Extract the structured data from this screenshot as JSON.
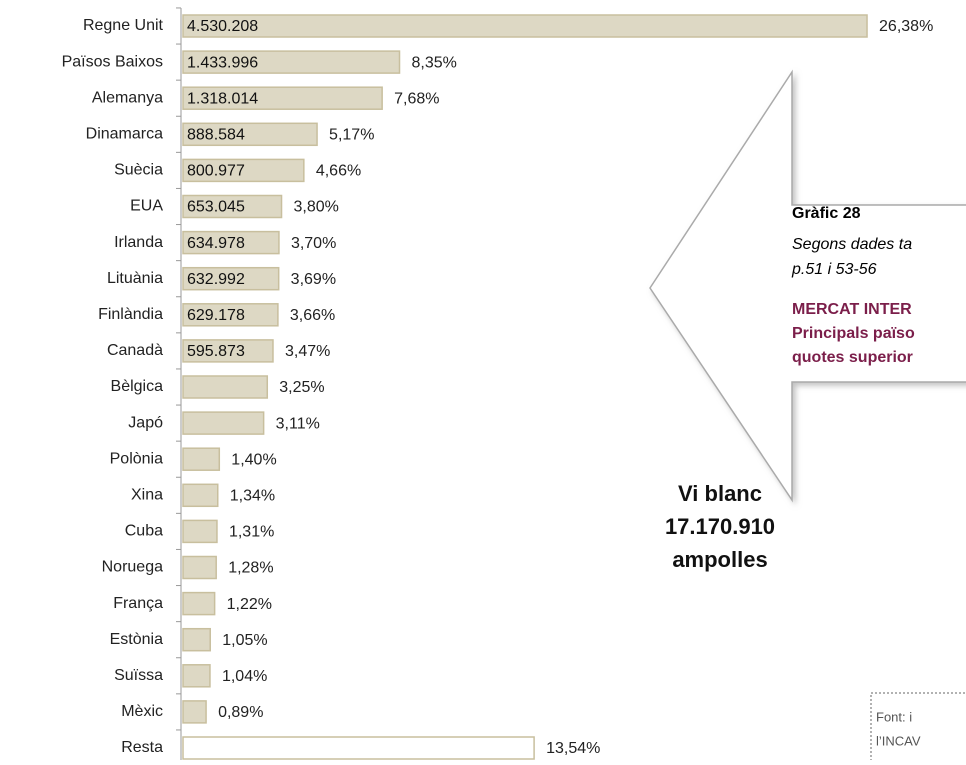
{
  "chart_data": {
    "type": "bar",
    "categories": [
      "Regne Unit",
      "Països Baixos",
      "Alemanya",
      "Dinamarca",
      "Suècia",
      "EUA",
      "Irlanda",
      "Lituània",
      "Finlàndia",
      "Canadà",
      "Bèlgica",
      "Japó",
      "Polònia",
      "Xina",
      "Cuba",
      "Noruega",
      "França",
      "Estònia",
      "Suïssa",
      "Mèxic",
      "Resta"
    ],
    "values": [
      26.38,
      8.35,
      7.68,
      5.17,
      4.66,
      3.8,
      3.7,
      3.69,
      3.66,
      3.47,
      3.25,
      3.11,
      1.4,
      1.34,
      1.31,
      1.28,
      1.22,
      1.05,
      1.04,
      0.89,
      13.54
    ],
    "value_labels": [
      "26,38%",
      "8,35%",
      "7,68%",
      "5,17%",
      "4,66%",
      "3,80%",
      "3,70%",
      "3,69%",
      "3,66%",
      "3,47%",
      "3,25%",
      "3,11%",
      "1,40%",
      "1,34%",
      "1,31%",
      "1,28%",
      "1,22%",
      "1,05%",
      "1,04%",
      "0,89%",
      "13,54%"
    ],
    "bottles": [
      4530208,
      1433996,
      1318014,
      888584,
      800977,
      653045,
      634978,
      632992,
      629178,
      595873,
      null,
      null,
      null,
      null,
      null,
      null,
      null,
      null,
      null,
      null,
      null
    ],
    "bottle_labels": [
      "4.530.208",
      "1.433.996",
      "1.318.014",
      "888.584",
      "800.977",
      "653.045",
      "634.978",
      "632.992",
      "629.178",
      "595.873",
      null,
      null,
      null,
      null,
      null,
      null,
      null,
      null,
      null,
      null,
      null
    ],
    "colors": [
      "#ddd8c4",
      "#ddd8c4",
      "#ddd8c4",
      "#ddd8c4",
      "#ddd8c4",
      "#ddd8c4",
      "#ddd8c4",
      "#ddd8c4",
      "#ddd8c4",
      "#ddd8c4",
      "#ddd8c4",
      "#ddd8c4",
      "#ddd8c4",
      "#ddd8c4",
      "#ddd8c4",
      "#ddd8c4",
      "#ddd8c4",
      "#ddd8c4",
      "#ddd8c4",
      "#ddd8c4",
      "#ffffff"
    ],
    "callout": [
      "Vi blanc",
      "17.170.910",
      "ampolles"
    ]
  },
  "info_box": {
    "title": "Gràfic 28",
    "subtitle": [
      "Segons dades ta",
      "p.51 i 53-56"
    ],
    "heading": [
      "MERCAT INTER",
      "Principals païso",
      "quotes superior"
    ]
  },
  "source": [
    "Font:  i",
    "l’INCAV"
  ]
}
